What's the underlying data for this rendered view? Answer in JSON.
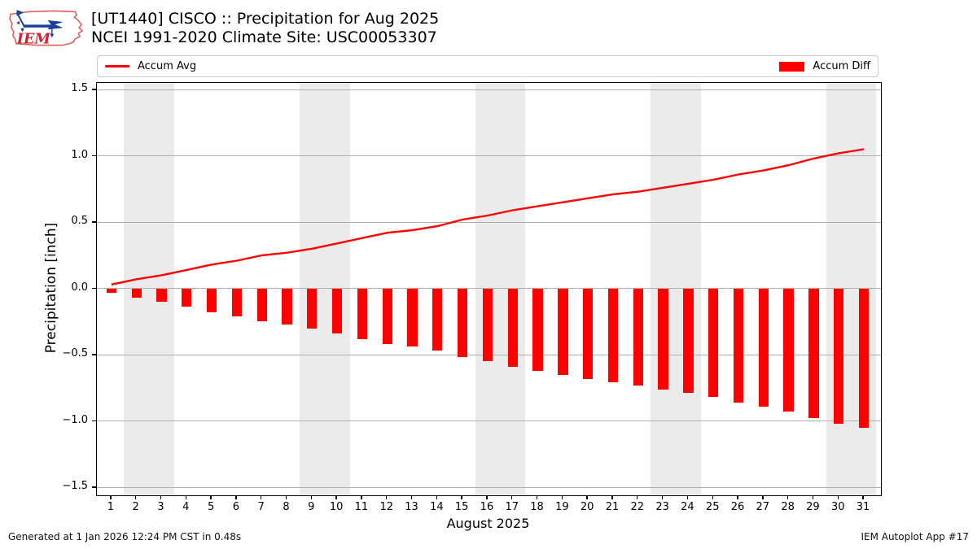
{
  "header": {
    "logo_text": "IEM",
    "title_line1": "[UT1440] CISCO :: Precipitation for Aug 2025",
    "title_line2": "NCEI 1991-2020 Climate Site: USC00053307"
  },
  "legend": {
    "items": [
      {
        "label": "Accum Avg",
        "swatch": "line",
        "color": "#ff0000"
      },
      {
        "label": "Accum Diff",
        "swatch": "rect",
        "color": "#ff0000"
      }
    ]
  },
  "footer": {
    "left": "Generated at 1 Jan 2026 12:24 PM CST in 0.48s",
    "right": "IEM Autoplot App #17"
  },
  "chart_data": {
    "type": "bar",
    "subtype": "line+bar combo",
    "title": "[UT1440] CISCO :: Precipitation for Aug 2025",
    "subtitle": "NCEI 1991-2020 Climate Site: USC00053307",
    "xlabel": "August 2025",
    "ylabel": "Precipitation [inch]",
    "x": [
      1,
      2,
      3,
      4,
      5,
      6,
      7,
      8,
      9,
      10,
      11,
      12,
      13,
      14,
      15,
      16,
      17,
      18,
      19,
      20,
      21,
      22,
      23,
      24,
      25,
      26,
      27,
      28,
      29,
      30,
      31
    ],
    "series": [
      {
        "name": "Accum Avg",
        "type": "line",
        "color": "#ff0000",
        "values": [
          0.03,
          0.07,
          0.1,
          0.14,
          0.18,
          0.21,
          0.25,
          0.27,
          0.3,
          0.34,
          0.38,
          0.42,
          0.44,
          0.47,
          0.52,
          0.55,
          0.59,
          0.62,
          0.65,
          0.68,
          0.71,
          0.73,
          0.76,
          0.79,
          0.82,
          0.86,
          0.89,
          0.93,
          0.98,
          1.02,
          1.05
        ]
      },
      {
        "name": "Accum Diff",
        "type": "bar",
        "color": "#ff0000",
        "values": [
          -0.03,
          -0.07,
          -0.1,
          -0.14,
          -0.18,
          -0.21,
          -0.25,
          -0.27,
          -0.3,
          -0.34,
          -0.38,
          -0.42,
          -0.44,
          -0.47,
          -0.52,
          -0.55,
          -0.59,
          -0.62,
          -0.65,
          -0.68,
          -0.71,
          -0.73,
          -0.76,
          -0.79,
          -0.82,
          -0.86,
          -0.89,
          -0.93,
          -0.98,
          -1.02,
          -1.05
        ]
      }
    ],
    "ylim": [
      -1.56,
      1.55
    ],
    "xlim": [
      0.42,
      31.68
    ],
    "yticks": [
      -1.5,
      -1.0,
      -0.5,
      0.0,
      0.5,
      1.0,
      1.5
    ],
    "xticks": [
      1,
      2,
      3,
      4,
      5,
      6,
      7,
      8,
      9,
      10,
      11,
      12,
      13,
      14,
      15,
      16,
      17,
      18,
      19,
      20,
      21,
      22,
      23,
      24,
      25,
      26,
      27,
      28,
      29,
      30,
      31
    ],
    "weekend_bands": [
      [
        1.5,
        3.5
      ],
      [
        8.5,
        10.5
      ],
      [
        15.5,
        17.5
      ],
      [
        22.5,
        24.5
      ],
      [
        29.5,
        31.5
      ]
    ],
    "grid": true,
    "grid_color": "#b0b0b0",
    "band_color": "#ebebeb",
    "bar_width_days": 0.4,
    "legend_position": "top",
    "legend_entries": [
      "Accum Avg",
      "Accum Diff"
    ]
  }
}
